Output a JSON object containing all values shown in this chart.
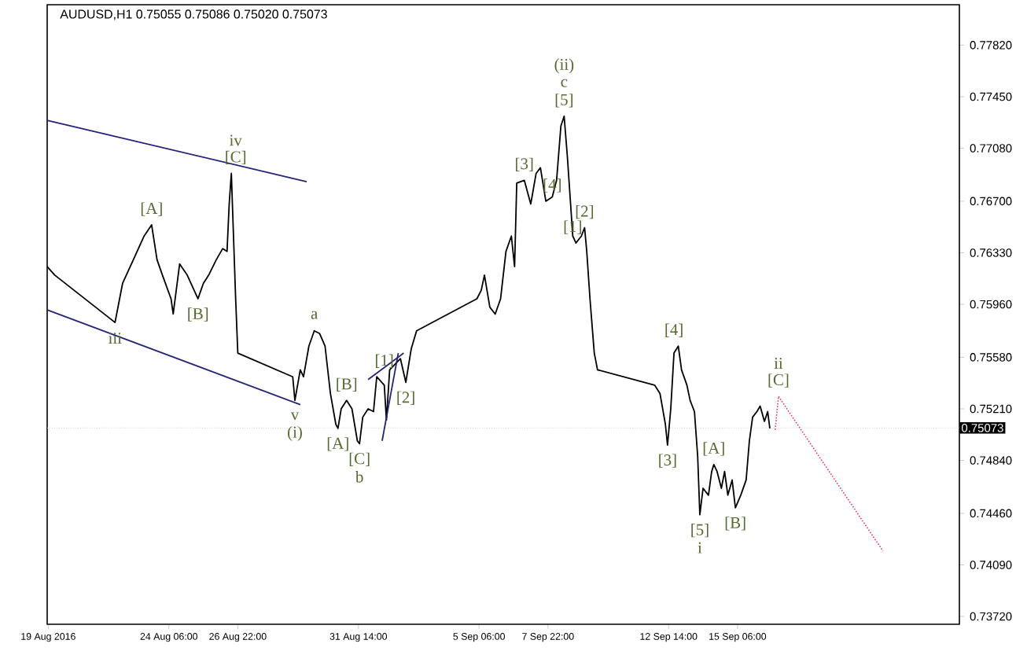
{
  "chart_data": {
    "type": "line",
    "title": "AUDUSD,H1  0.75055 0.75086 0.75020 0.75073",
    "xlim": [
      "2016-08-19T13:00",
      "2016-09-23T20:00"
    ],
    "ylim": [
      0.73664,
      0.7811
    ],
    "xticks": [
      {
        "value": "2016-08-19T14:00",
        "label": "19 Aug 2016"
      },
      {
        "value": "2016-08-24T06:00",
        "label": "24 Aug 06:00"
      },
      {
        "value": "2016-08-26T22:00",
        "label": "26 Aug 22:00"
      },
      {
        "value": "2016-08-31T14:00",
        "label": "31 Aug 14:00"
      },
      {
        "value": "2016-09-05T06:00",
        "label": "5 Sep 06:00"
      },
      {
        "value": "2016-09-07T22:00",
        "label": "7 Sep 22:00"
      },
      {
        "value": "2016-09-12T14:00",
        "label": "12 Sep 14:00"
      },
      {
        "value": "2016-09-15T06:00",
        "label": "15 Sep 06:00"
      }
    ],
    "yticks": [
      {
        "value": 0.7372,
        "label": "0.73720"
      },
      {
        "value": 0.7409,
        "label": "0.74090"
      },
      {
        "value": 0.7446,
        "label": "0.74460"
      },
      {
        "value": 0.7484,
        "label": "0.74840"
      },
      {
        "value": 0.7521,
        "label": "0.75210"
      },
      {
        "value": 0.7558,
        "label": "0.75580"
      },
      {
        "value": 0.7596,
        "label": "0.75960"
      },
      {
        "value": 0.7633,
        "label": "0.76330"
      },
      {
        "value": 0.767,
        "label": "0.76700"
      },
      {
        "value": 0.7708,
        "label": "0.77080"
      },
      {
        "value": 0.7745,
        "label": "0.77450"
      },
      {
        "value": 0.7782,
        "label": "0.77820"
      }
    ],
    "ref_lines": [
      {
        "axis": "y",
        "value": 0.75073,
        "label": "0.75073",
        "color": "#d0d0d0",
        "line_style": "dotted"
      }
    ],
    "series": [
      {
        "color": "#000000",
        "x": [
          "2016-08-19T13:00",
          "2016-08-19T20:00",
          "2016-08-22T04:00",
          "2016-08-22T11:00",
          "2016-08-22T21:00",
          "2016-08-23T07:00",
          "2016-08-23T14:00",
          "2016-08-23T19:00",
          "2016-08-24T00:00",
          "2016-08-24T08:00",
          "2016-08-24T10:00",
          "2016-08-24T16:00",
          "2016-08-24T23:00",
          "2016-08-25T09:00",
          "2016-08-25T14:00",
          "2016-08-25T19:00",
          "2016-08-26T02:00",
          "2016-08-26T08:00",
          "2016-08-26T12:00",
          "2016-08-26T14:00",
          "2016-08-26T16:00",
          "2016-08-26T18:00",
          "2016-08-26T20:00",
          "2016-08-26T22:00",
          "2016-08-29T01:00",
          "2016-08-29T03:00",
          "2016-08-29T08:00",
          "2016-08-29T11:00",
          "2016-08-29T16:00",
          "2016-08-29T21:00",
          "2016-08-30T02:00",
          "2016-08-30T07:00",
          "2016-08-30T12:00",
          "2016-08-30T17:00",
          "2016-08-30T19:00",
          "2016-08-30T22:00",
          "2016-08-31T03:00",
          "2016-08-31T08:00",
          "2016-08-31T13:00",
          "2016-08-31T15:00",
          "2016-08-31T18:00",
          "2016-08-31T23:00",
          "2016-09-01T04:00",
          "2016-09-01T07:00",
          "2016-09-01T14:00",
          "2016-09-01T16:00",
          "2016-09-01T19:00",
          "2016-09-02T05:00",
          "2016-09-02T10:00",
          "2016-09-02T15:00",
          "2016-09-02T20:00",
          "2016-09-05T04:00",
          "2016-09-05T08:00",
          "2016-09-05T11:00",
          "2016-09-05T16:00",
          "2016-09-05T21:00",
          "2016-09-06T02:00",
          "2016-09-06T07:00",
          "2016-09-06T12:00",
          "2016-09-06T15:00",
          "2016-09-06T17:00",
          "2016-09-07T00:00",
          "2016-09-07T06:00",
          "2016-09-07T11:00",
          "2016-09-07T15:00",
          "2016-09-07T20:00",
          "2016-09-08T02:00",
          "2016-09-08T06:00",
          "2016-09-08T10:00",
          "2016-09-08T13:00",
          "2016-09-08T16:00",
          "2016-09-08T19:00",
          "2016-09-08T21:00",
          "2016-09-09T00:00",
          "2016-09-09T05:00",
          "2016-09-09T08:00",
          "2016-09-09T10:00",
          "2016-09-09T13:00",
          "2016-09-09T17:00",
          "2016-09-09T20:00",
          "2016-09-12T01:00",
          "2016-09-12T06:00",
          "2016-09-12T11:00",
          "2016-09-12T13:00",
          "2016-09-12T16:00",
          "2016-09-12T19:00",
          "2016-09-12T23:00",
          "2016-09-13T02:00",
          "2016-09-13T07:00",
          "2016-09-13T10:00",
          "2016-09-13T14:00",
          "2016-09-13T17:00",
          "2016-09-13T19:00",
          "2016-09-13T22:00",
          "2016-09-14T03:00",
          "2016-09-14T06:00",
          "2016-09-14T08:00",
          "2016-09-14T11:00",
          "2016-09-14T15:00",
          "2016-09-14T18:00",
          "2016-09-14T21:00",
          "2016-09-15T01:00",
          "2016-09-15T04:00",
          "2016-09-15T09:00",
          "2016-09-15T14:00",
          "2016-09-15T17:00",
          "2016-09-15T20:00",
          "2016-09-16T00:00",
          "2016-09-16T03:00",
          "2016-09-16T07:00",
          "2016-09-16T10:00",
          "2016-09-16T12:00"
        ],
        "values": [
          0.7623,
          0.7617,
          0.7583,
          0.7611,
          0.7628,
          0.7645,
          0.7653,
          0.7628,
          0.7617,
          0.76,
          0.7589,
          0.7625,
          0.7617,
          0.76,
          0.7611,
          0.7617,
          0.7628,
          0.7636,
          0.7634,
          0.7668,
          0.769,
          0.7645,
          0.76,
          0.7561,
          0.7544,
          0.7527,
          0.7549,
          0.7544,
          0.7566,
          0.7577,
          0.7575,
          0.7566,
          0.7532,
          0.751,
          0.7507,
          0.7521,
          0.7527,
          0.7521,
          0.7498,
          0.7496,
          0.7515,
          0.7521,
          0.7519,
          0.7544,
          0.7538,
          0.7513,
          0.7549,
          0.7557,
          0.754,
          0.7564,
          0.7577,
          0.76,
          0.7606,
          0.7617,
          0.7594,
          0.7589,
          0.76,
          0.7634,
          0.7645,
          0.7623,
          0.7683,
          0.7685,
          0.7668,
          0.769,
          0.7694,
          0.767,
          0.7673,
          0.7685,
          0.7724,
          0.7731,
          0.7702,
          0.7668,
          0.7645,
          0.764,
          0.7645,
          0.7651,
          0.7634,
          0.76,
          0.7561,
          0.7549,
          0.7538,
          0.7532,
          0.751,
          0.7495,
          0.7521,
          0.7561,
          0.7566,
          0.7549,
          0.7538,
          0.7527,
          0.7519,
          0.7487,
          0.7445,
          0.7464,
          0.7459,
          0.7476,
          0.7481,
          0.7476,
          0.7464,
          0.7476,
          0.7459,
          0.747,
          0.745,
          0.7459,
          0.747,
          0.7498,
          0.7515,
          0.7519,
          0.7523,
          0.7512,
          0.7519,
          0.7507
        ]
      },
      {
        "color": "#23237a",
        "x": [
          "2016-08-19T13:00",
          "2016-08-29T14:00"
        ],
        "values": [
          0.7728,
          0.7684
        ]
      },
      {
        "color": "#23237a",
        "x": [
          "2016-08-19T13:00",
          "2016-08-29T08:00"
        ],
        "values": [
          0.7592,
          0.7524
        ]
      },
      {
        "color": "#23237a",
        "x": [
          "2016-08-31T23:00",
          "2016-09-02T08:00"
        ],
        "values": [
          0.7542,
          0.7561
        ]
      },
      {
        "color": "#23237a",
        "x": [
          "2016-09-01T12:00",
          "2016-09-02T03:00"
        ],
        "values": [
          0.7498,
          0.7561
        ]
      },
      {
        "color": "#e8356b",
        "line_style": "dotted",
        "x": [
          "2016-09-16T17:00",
          "2016-09-16T20:00",
          "2016-09-20T21:00"
        ],
        "values": [
          0.7506,
          0.753,
          0.7419
        ]
      }
    ],
    "annotations": [
      {
        "text": "iii",
        "x": "2016-08-22T04:00",
        "y": 0.7583
      },
      {
        "text": "[A]",
        "x": "2016-08-23T14:00",
        "y": 0.7653
      },
      {
        "text": "[B]",
        "x": "2016-08-25T09:00",
        "y": 0.76
      },
      {
        "text": "iv",
        "x": "2016-08-26T20:00",
        "y": 0.769
      },
      {
        "text": "[C]",
        "x": "2016-08-26T20:00",
        "y": 0.769
      },
      {
        "text": "a",
        "x": "2016-08-29T21:00",
        "y": 0.7577
      },
      {
        "text": "[B]",
        "x": "2016-08-31T03:00",
        "y": 0.7527
      },
      {
        "text": "v",
        "x": "2016-08-29T03:00",
        "y": 0.7527
      },
      {
        "text": "(i)",
        "x": "2016-08-29T03:00",
        "y": 0.7527
      },
      {
        "text": "[A]",
        "x": "2016-08-30T19:00",
        "y": 0.7507
      },
      {
        "text": "[C]",
        "x": "2016-08-31T15:00",
        "y": 0.7496
      },
      {
        "text": "b",
        "x": "2016-08-31T15:00",
        "y": 0.7496
      },
      {
        "text": "[1]",
        "x": "2016-09-01T14:00",
        "y": 0.7544
      },
      {
        "text": "[2]",
        "x": "2016-09-02T10:00",
        "y": 0.754
      },
      {
        "text": "[3]",
        "x": "2016-09-07T00:00",
        "y": 0.7685
      },
      {
        "text": "[4]",
        "x": "2016-09-08T02:00",
        "y": 0.767
      },
      {
        "text": "(ii)",
        "x": "2016-09-08T13:00",
        "y": 0.7731
      },
      {
        "text": "c",
        "x": "2016-09-08T13:00",
        "y": 0.7731
      },
      {
        "text": "[5]",
        "x": "2016-09-08T13:00",
        "y": 0.7731
      },
      {
        "text": "[2]",
        "x": "2016-09-09T08:00",
        "y": 0.7651
      },
      {
        "text": "[1]",
        "x": "2016-09-08T21:00",
        "y": 0.764
      },
      {
        "text": "[4]",
        "x": "2016-09-12T19:00",
        "y": 0.7566
      },
      {
        "text": "[3]",
        "x": "2016-09-12T13:00",
        "y": 0.7495
      },
      {
        "text": "[5]",
        "x": "2016-09-13T19:00",
        "y": 0.7445
      },
      {
        "text": "i",
        "x": "2016-09-13T19:00",
        "y": 0.7445
      },
      {
        "text": "[A]",
        "x": "2016-09-14T08:00",
        "y": 0.7481
      },
      {
        "text": "[B]",
        "x": "2016-09-15T04:00",
        "y": 0.745
      },
      {
        "text": "ii",
        "x": "2016-09-16T20:00",
        "y": 0.753
      },
      {
        "text": "[C]",
        "x": "2016-09-16T20:00",
        "y": 0.753
      }
    ]
  }
}
